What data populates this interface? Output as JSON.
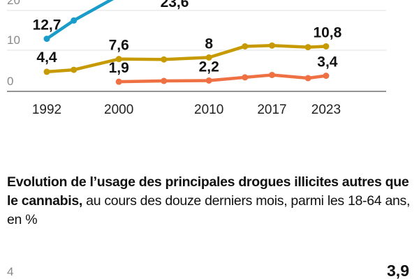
{
  "chart_data": [
    {
      "type": "line",
      "ylim": [
        0,
        20
      ],
      "yticks": [
        "0",
        "10",
        "20"
      ],
      "xticks": [
        "1992",
        "2000",
        "2010",
        "2017",
        "2023"
      ],
      "grid": true,
      "colors": {
        "blue": "#1a9ccb",
        "gold": "#c69a00",
        "orange": "#ef7042"
      },
      "series": [
        {
          "color": "blue",
          "x": [
            1992,
            1995,
            2000
          ],
          "values": [
            12.7,
            17.3,
            23.6
          ],
          "labels": [
            {
              "x": 1992,
              "text": "12,7"
            },
            {
              "x": 2000,
              "text": "23,6"
            }
          ]
        },
        {
          "color": "gold",
          "x": [
            1992,
            1995,
            2000,
            2005,
            2010,
            2014,
            2017,
            2021,
            2023
          ],
          "values": [
            4.4,
            4.9,
            7.6,
            7.5,
            8,
            10.8,
            11.0,
            10.6,
            10.8
          ],
          "labels": [
            {
              "x": 1992,
              "text": "4,4"
            },
            {
              "x": 2000,
              "text": "7,6"
            },
            {
              "x": 2010,
              "text": "8"
            },
            {
              "x": 2023,
              "text": "10,8"
            }
          ]
        },
        {
          "color": "orange",
          "x": [
            2000,
            2005,
            2010,
            2014,
            2017,
            2021,
            2023
          ],
          "values": [
            1.9,
            2.1,
            2.2,
            3.0,
            3.6,
            2.8,
            3.4
          ],
          "labels": [
            {
              "x": 2000,
              "text": "1,9"
            },
            {
              "x": 2010,
              "text": "2,2"
            },
            {
              "x": 2023,
              "text": "3,4"
            }
          ]
        }
      ]
    },
    {
      "type": "line",
      "title_bold": "Evolution de l’usage des principales drogues illicites autres que le cannabis,",
      "title_rest": " au cours des douze derniers mois, parmi les 18-64 ans, en %",
      "yticks": [
        "4"
      ],
      "labels": [
        {
          "x": 2023,
          "text": "3,9"
        }
      ]
    }
  ]
}
